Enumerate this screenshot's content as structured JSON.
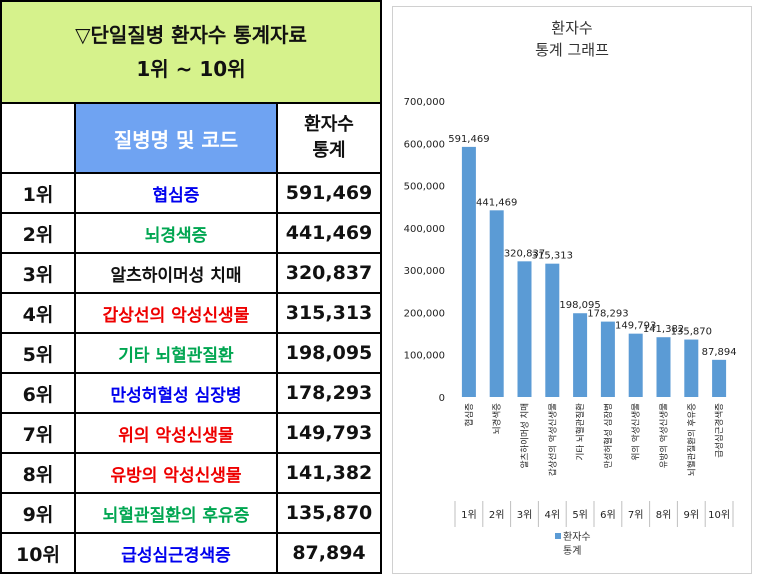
{
  "table": {
    "title_line1": "▽단일질병 환자수 통계자료",
    "title_line2": "1위 ~ 10위",
    "header_name": "질병명 및 코드",
    "header_count_line1": "환자수",
    "header_count_line2": "통계",
    "rows": [
      {
        "rank": "1위",
        "name": "협심증",
        "count": "591,469",
        "color": "#0000ee"
      },
      {
        "rank": "2위",
        "name": "뇌경색증",
        "count": "441,469",
        "color": "#00a651"
      },
      {
        "rank": "3위",
        "name": "알츠하이머성 치매",
        "count": "320,837",
        "color": "#111111"
      },
      {
        "rank": "4위",
        "name": "갑상선의 악성신생물",
        "count": "315,313",
        "color": "#ee0000"
      },
      {
        "rank": "5위",
        "name": "기타 뇌혈관질환",
        "count": "198,095",
        "color": "#00a651"
      },
      {
        "rank": "6위",
        "name": "만성허혈성 심장병",
        "count": "178,293",
        "color": "#0000ee"
      },
      {
        "rank": "7위",
        "name": "위의 악성신생물",
        "count": "149,793",
        "color": "#ee0000"
      },
      {
        "rank": "8위",
        "name": "유방의 악성신생물",
        "count": "141,382",
        "color": "#ee0000"
      },
      {
        "rank": "9위",
        "name": "뇌혈관질환의 후유증",
        "count": "135,870",
        "color": "#00a651"
      },
      {
        "rank": "10위",
        "name": "급성심근경색증",
        "count": "87,894",
        "color": "#0000ee"
      }
    ]
  },
  "chart_data": {
    "type": "bar",
    "title_line1": "환자수",
    "title_line2": "통계 그래프",
    "categories": [
      "협심증",
      "뇌경색증",
      "알츠하이머성 치매",
      "갑상선의 악성신생물",
      "기타 뇌혈관질환",
      "만성허혈성 심장병",
      "위의 악성신생물",
      "유방의 악성신생물",
      "뇌혈관질환의 후유증",
      "급성심근경색증"
    ],
    "ranks": [
      "1위",
      "2위",
      "3위",
      "4위",
      "5위",
      "6위",
      "7위",
      "8위",
      "9위",
      "10위"
    ],
    "series": [
      {
        "name_line1": "환자수",
        "name_line2": "통계",
        "values": [
          591469,
          441469,
          320837,
          315313,
          198095,
          178293,
          149793,
          141382,
          135870,
          87894
        ],
        "labels": [
          "591,469",
          "441,469",
          "320,837",
          "315,313",
          "198,095",
          "178,293",
          "149,793",
          "141,382",
          "135,870",
          "87,894"
        ]
      }
    ],
    "yticks": [
      "700,000",
      "600,000",
      "500,000",
      "400,000",
      "300,000",
      "200,000",
      "100,000",
      "0"
    ],
    "ylim": [
      0,
      700000
    ],
    "bar_color": "#5b9bd5",
    "legend_position": "bottom",
    "grid": false
  }
}
